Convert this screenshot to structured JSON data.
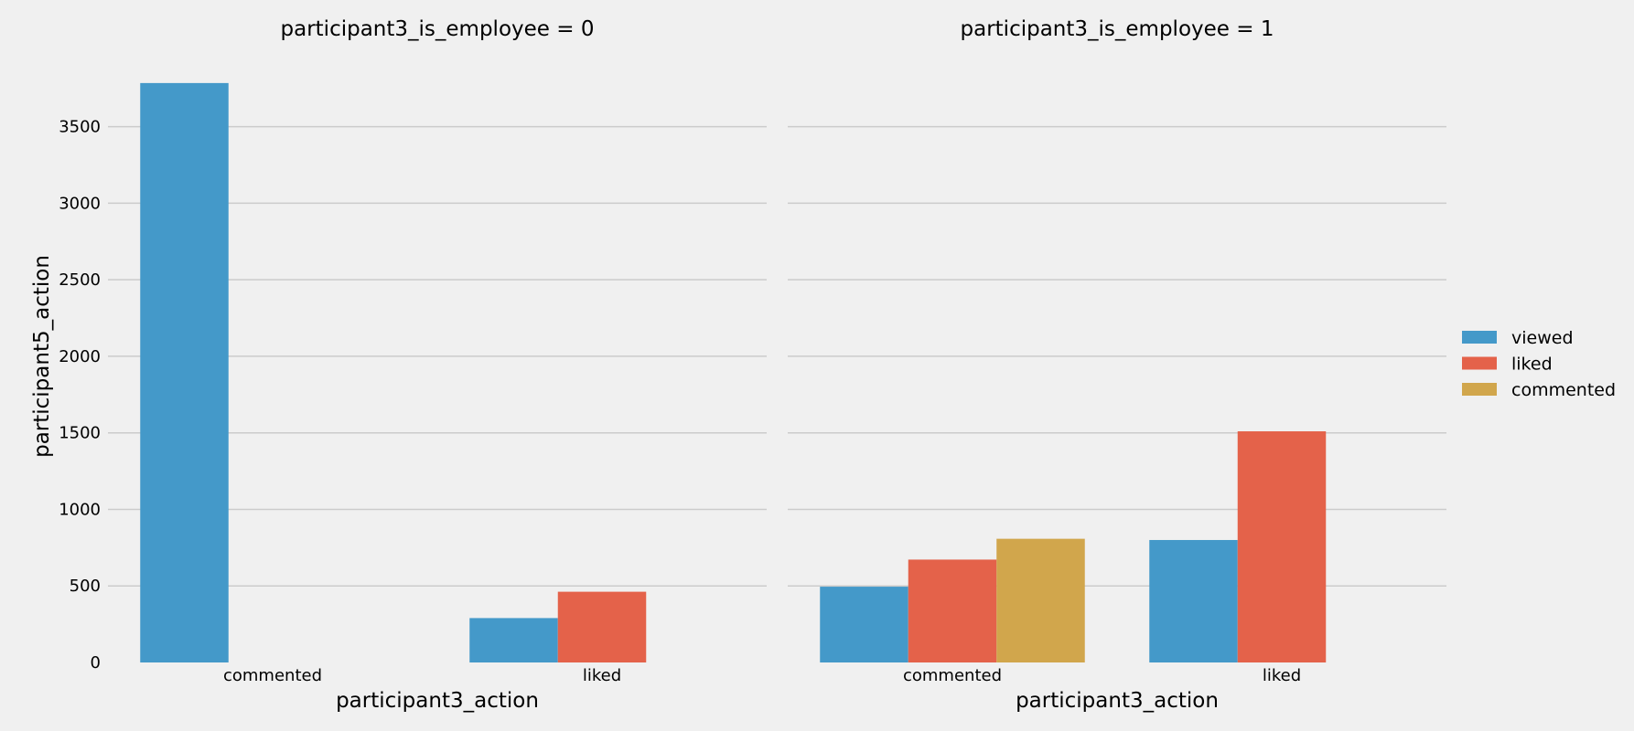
{
  "chart_data": {
    "type": "bar",
    "ylabel": "participant5_action",
    "ylim": [
      0,
      3850
    ],
    "yticks": [
      0,
      500,
      1000,
      1500,
      2000,
      2500,
      3000,
      3500
    ],
    "grid": true,
    "legend": {
      "placement": "right",
      "entries": [
        {
          "name": "viewed",
          "color": "#4499c9"
        },
        {
          "name": "liked",
          "color": "#e4624a"
        },
        {
          "name": "commented",
          "color": "#d1a64c"
        }
      ]
    },
    "panels": [
      {
        "title": "participant3_is_employee = 0",
        "xlabel": "participant3_action",
        "categories": [
          "commented",
          "liked"
        ],
        "series": [
          {
            "name": "viewed",
            "values": [
              3785,
              290
            ]
          },
          {
            "name": "liked",
            "values": [
              null,
              462
            ]
          },
          {
            "name": "commented",
            "values": [
              null,
              null
            ]
          }
        ]
      },
      {
        "title": "participant3_is_employee = 1",
        "xlabel": "participant3_action",
        "categories": [
          "commented",
          "liked"
        ],
        "series": [
          {
            "name": "viewed",
            "values": [
              495,
              800
            ]
          },
          {
            "name": "liked",
            "values": [
              672,
              1510
            ]
          },
          {
            "name": "commented",
            "values": [
              808,
              null
            ]
          }
        ]
      }
    ]
  }
}
